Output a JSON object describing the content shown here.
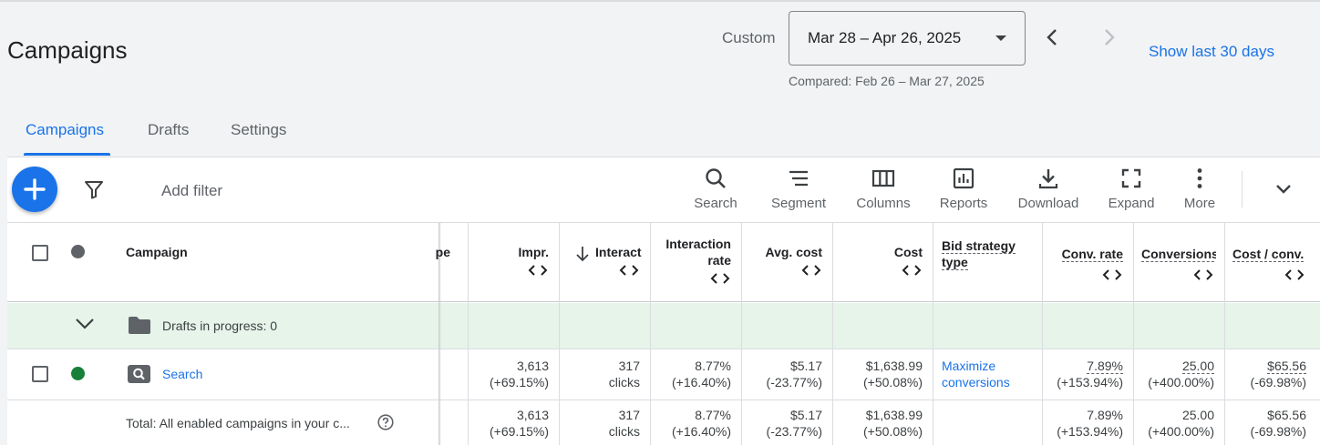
{
  "header": {
    "title": "Campaigns",
    "date_range_mode": "Custom",
    "date_range": "Mar 28 – Apr 26, 2025",
    "compared": "Compared: Feb 26 – Mar 27, 2025",
    "show_last": "Show last 30 days"
  },
  "tabs": [
    {
      "label": "Campaigns",
      "active": true
    },
    {
      "label": "Drafts",
      "active": false
    },
    {
      "label": "Settings",
      "active": false
    }
  ],
  "toolbar": {
    "add_filter": "Add filter",
    "tools": [
      {
        "label": "Search",
        "icon": "search-icon"
      },
      {
        "label": "Segment",
        "icon": "segment-icon"
      },
      {
        "label": "Columns",
        "icon": "columns-icon"
      },
      {
        "label": "Reports",
        "icon": "reports-icon"
      },
      {
        "label": "Download",
        "icon": "download-icon"
      },
      {
        "label": "Expand",
        "icon": "expand-icon"
      },
      {
        "label": "More",
        "icon": "more-vert-icon"
      }
    ]
  },
  "table": {
    "columns": {
      "campaign": "Campaign",
      "type_fragment": "pe",
      "impr": "Impr.",
      "interactions": "Interact",
      "interaction_rate_1": "Interaction",
      "interaction_rate_2": "rate",
      "avg_cost": "Avg. cost",
      "cost": "Cost",
      "bid_strategy_1": "Bid strategy",
      "bid_strategy_2": "type",
      "conv_rate": "Conv. rate",
      "conversions": "Conversions",
      "cost_per_conv": "Cost / conv."
    },
    "drafts_row": {
      "label": "Drafts in progress: 0"
    },
    "rows": [
      {
        "name": "Search",
        "status_color": "#188038",
        "impr": "3,613",
        "impr_change": "(+69.15%)",
        "interactions": "317",
        "interactions_unit": "clicks",
        "interaction_rate": "8.77%",
        "interaction_rate_change": "(+16.40%)",
        "avg_cost": "$5.17",
        "avg_cost_change": "(-23.77%)",
        "cost": "$1,638.99",
        "cost_change": "(+50.08%)",
        "bid_strategy_1": "Maximize",
        "bid_strategy_2": "conversions",
        "conv_rate": "7.89%",
        "conv_rate_change": "(+153.94%)",
        "conversions": "25.00",
        "conversions_change": "(+400.00%)",
        "cost_per_conv": "$65.56",
        "cost_per_conv_change": "(-69.98%)"
      }
    ],
    "total": {
      "label": "Total: All enabled campaigns in your c...",
      "impr": "3,613",
      "impr_change": "(+69.15%)",
      "interactions": "317",
      "interactions_unit": "clicks",
      "interaction_rate": "8.77%",
      "interaction_rate_change": "(+16.40%)",
      "avg_cost": "$5.17",
      "avg_cost_change": "(-23.77%)",
      "cost": "$1,638.99",
      "cost_change": "(+50.08%)",
      "conv_rate": "7.89%",
      "conv_rate_change": "(+153.94%)",
      "conversions": "25.00",
      "conversions_change": "(+400.00%)",
      "cost_per_conv": "$65.56",
      "cost_per_conv_change": "(-69.98%)"
    }
  },
  "colors": {
    "accent": "#1a73e8",
    "enabled_status": "#188038",
    "drafts_row_bg": "#e6f4ea"
  }
}
